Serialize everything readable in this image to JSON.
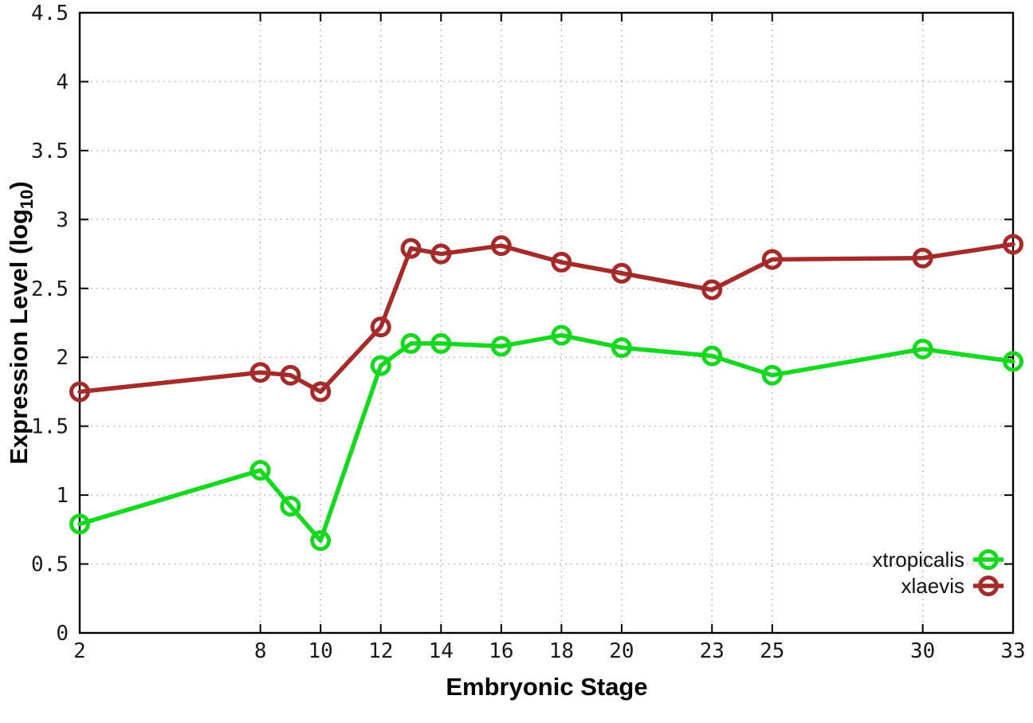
{
  "chart_data": {
    "type": "line",
    "xlabel": "Embryonic Stage",
    "ylabel_main": "Expression Level (log",
    "ylabel_sub": "10",
    "ylabel_close": ")",
    "xlim": [
      2,
      33
    ],
    "ylim": [
      0,
      4.5
    ],
    "grid": true,
    "grid_style": "dotted",
    "legend_position": "bottom-right-inside",
    "x": [
      2,
      8,
      9,
      10,
      12,
      13,
      14,
      16,
      18,
      20,
      23,
      25,
      30,
      33
    ],
    "xticks": [
      2,
      8,
      10,
      12,
      14,
      16,
      18,
      20,
      23,
      25,
      30,
      33
    ],
    "xtick_labels": [
      "2",
      "8",
      "10",
      "12",
      "14",
      "16",
      "18",
      "20",
      "23",
      "25",
      "30",
      "33"
    ],
    "yticks": [
      0,
      0.5,
      1,
      1.5,
      2,
      2.5,
      3,
      3.5,
      4,
      4.5
    ],
    "ytick_labels": [
      "0",
      "0.5",
      "1",
      "1.5",
      "2",
      "2.5",
      "3",
      "3.5",
      "4",
      "4.5"
    ],
    "series": [
      {
        "name": "xtropicalis",
        "color": "#15d81f",
        "marker": "open-circle",
        "values": [
          0.79,
          1.18,
          0.92,
          0.67,
          1.94,
          2.1,
          2.1,
          2.08,
          2.16,
          2.07,
          2.01,
          1.87,
          2.06,
          1.97
        ]
      },
      {
        "name": "xlaevis",
        "color": "#a52a2a",
        "marker": "open-circle",
        "values": [
          1.75,
          1.89,
          1.87,
          1.75,
          2.22,
          2.79,
          2.75,
          2.81,
          2.69,
          2.61,
          2.49,
          2.71,
          2.72,
          2.82
        ]
      }
    ],
    "colors": {
      "grid": "#b8b8b8",
      "axis": "#000000",
      "tick_text": "#1a1a1a"
    }
  }
}
